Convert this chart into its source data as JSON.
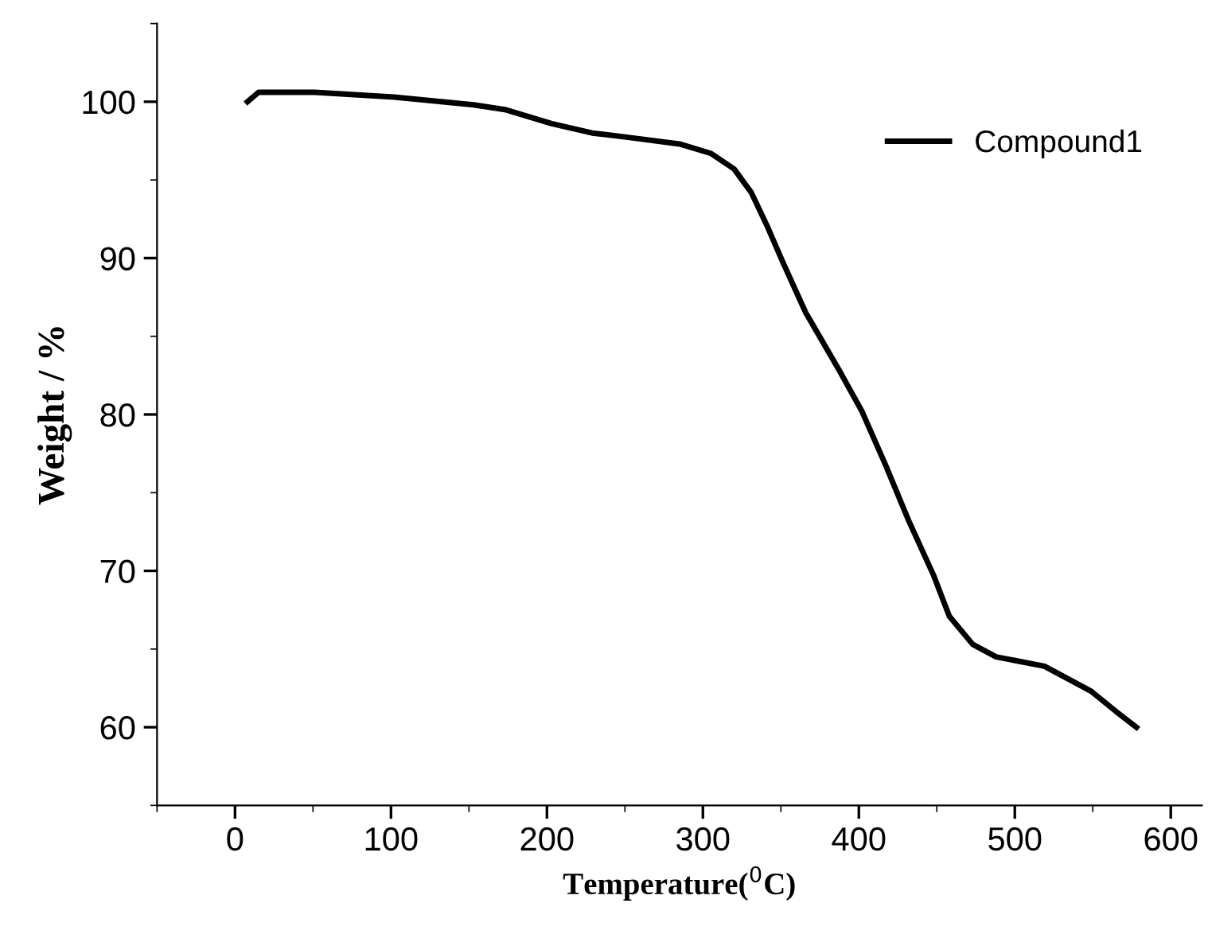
{
  "chart_data": {
    "type": "line",
    "xlabel": "Temperature($^{0}$C)",
    "ylabel": "Weight / %",
    "xlim": [
      -50,
      620
    ],
    "ylim": [
      55,
      105
    ],
    "xticks": [
      0,
      100,
      200,
      300,
      400,
      500,
      600
    ],
    "yticks": [
      60,
      70,
      80,
      90,
      100
    ],
    "legend": "top right",
    "grid": false,
    "marker": "none",
    "line_style": "solid",
    "series": [
      {
        "name": "Compound1",
        "color": "#000000",
        "x": [
          8,
          15,
          51,
          102,
          153,
          173,
          203,
          229,
          254,
          285,
          305,
          320,
          331,
          341,
          351,
          366,
          387,
          402,
          417,
          432,
          448,
          458,
          473,
          488,
          519,
          549,
          565,
          578
        ],
        "values": [
          100.0,
          100.6,
          100.6,
          100.3,
          99.8,
          99.5,
          98.6,
          98.0,
          97.7,
          97.3,
          96.7,
          95.7,
          94.2,
          92.1,
          89.8,
          86.5,
          82.9,
          80.2,
          76.8,
          73.2,
          69.7,
          67.1,
          65.3,
          64.5,
          63.9,
          62.3,
          61.0,
          60.0
        ]
      }
    ]
  }
}
